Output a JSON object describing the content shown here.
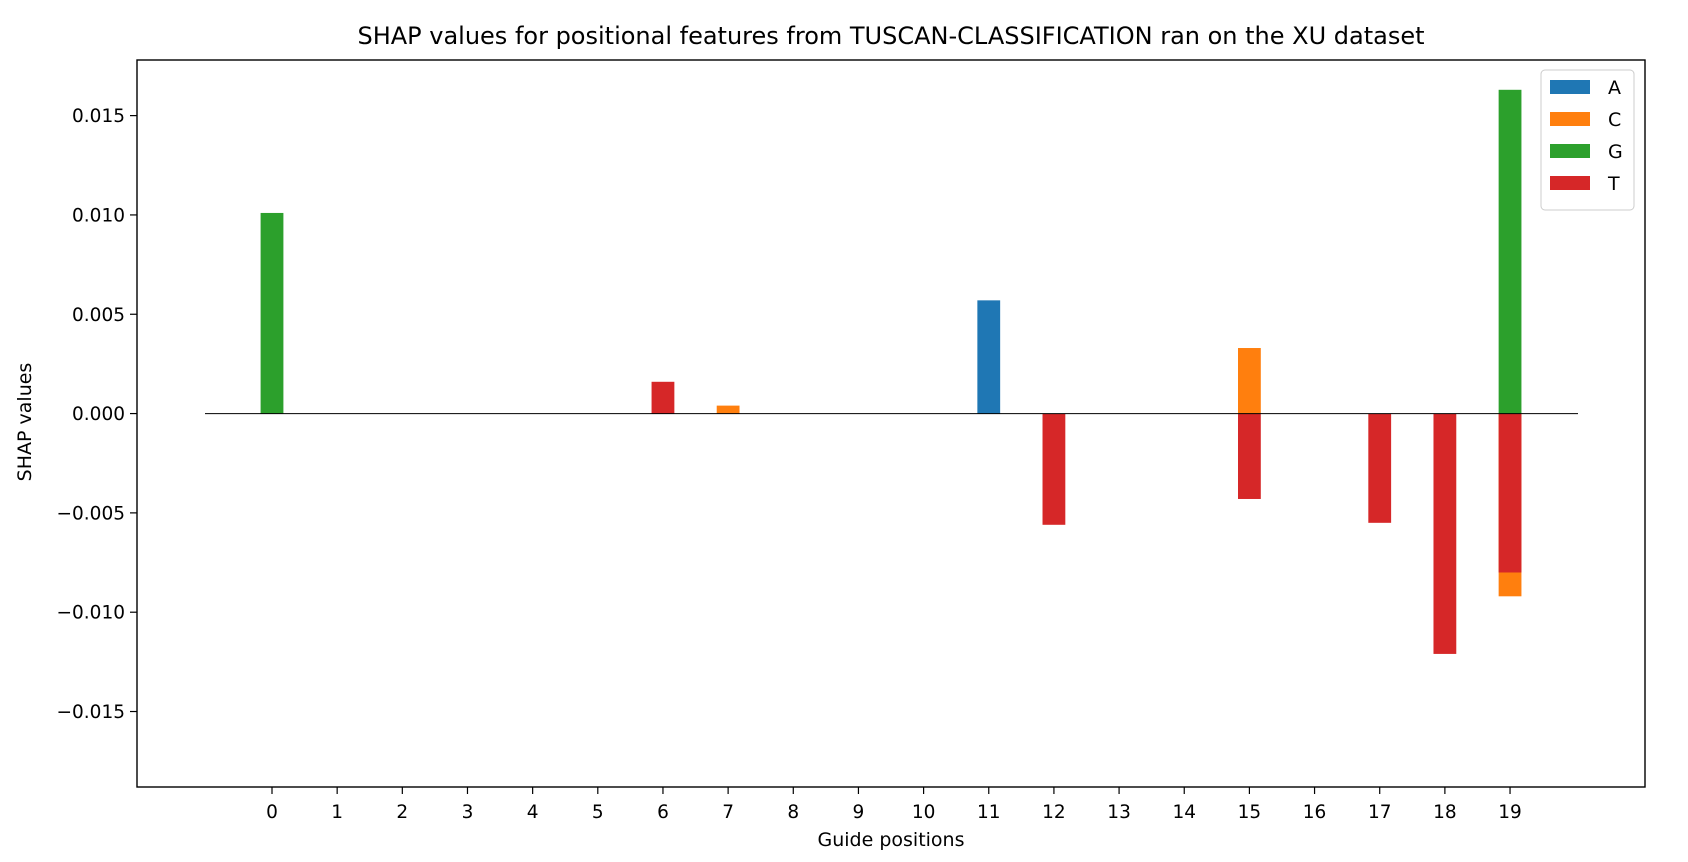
{
  "chart_data": {
    "type": "bar",
    "title": "SHAP values for positional features from TUSCAN-CLASSIFICATION ran on the XU dataset",
    "xlabel": "Guide positions",
    "ylabel": "SHAP values",
    "categories": [
      "0",
      "1",
      "2",
      "3",
      "4",
      "5",
      "6",
      "7",
      "8",
      "9",
      "10",
      "11",
      "12",
      "13",
      "14",
      "15",
      "16",
      "17",
      "18",
      "19"
    ],
    "ylim": [
      -0.0188,
      0.0178
    ],
    "yticks": [
      -0.015,
      -0.01,
      -0.005,
      0.0,
      0.005,
      0.01,
      0.015
    ],
    "ytick_labels": [
      "−0.015",
      "−0.010",
      "−0.005",
      "0.000",
      "0.005",
      "0.010",
      "0.015"
    ],
    "legend_position": "top-right",
    "grid": false,
    "colors": {
      "A": "#1f77b4",
      "C": "#ff7f0e",
      "G": "#2ca02c",
      "T": "#d62728"
    },
    "series": [
      {
        "name": "A",
        "values": [
          0,
          0,
          0,
          0,
          0,
          0,
          0,
          0,
          0,
          0,
          0,
          0.0057,
          0,
          0,
          0,
          0,
          0,
          0,
          0,
          0
        ]
      },
      {
        "name": "C",
        "values": [
          0,
          0,
          0,
          0,
          0,
          0,
          0,
          0.0004,
          0,
          0,
          0,
          0,
          0,
          0,
          0,
          0.0033,
          0,
          0,
          0,
          -0.0092
        ]
      },
      {
        "name": "G",
        "values": [
          0.0101,
          0,
          0,
          0,
          0,
          0,
          0,
          0,
          0,
          0,
          0,
          0,
          0,
          0,
          0,
          0,
          0,
          0,
          0,
          0.0163
        ]
      },
      {
        "name": "T",
        "values": [
          0,
          0,
          0,
          0,
          0,
          0,
          0.0016,
          0,
          0,
          0,
          0,
          0,
          -0.0056,
          0,
          0,
          -0.0043,
          0,
          -0.0055,
          -0.0121,
          -0.008
        ]
      }
    ]
  }
}
